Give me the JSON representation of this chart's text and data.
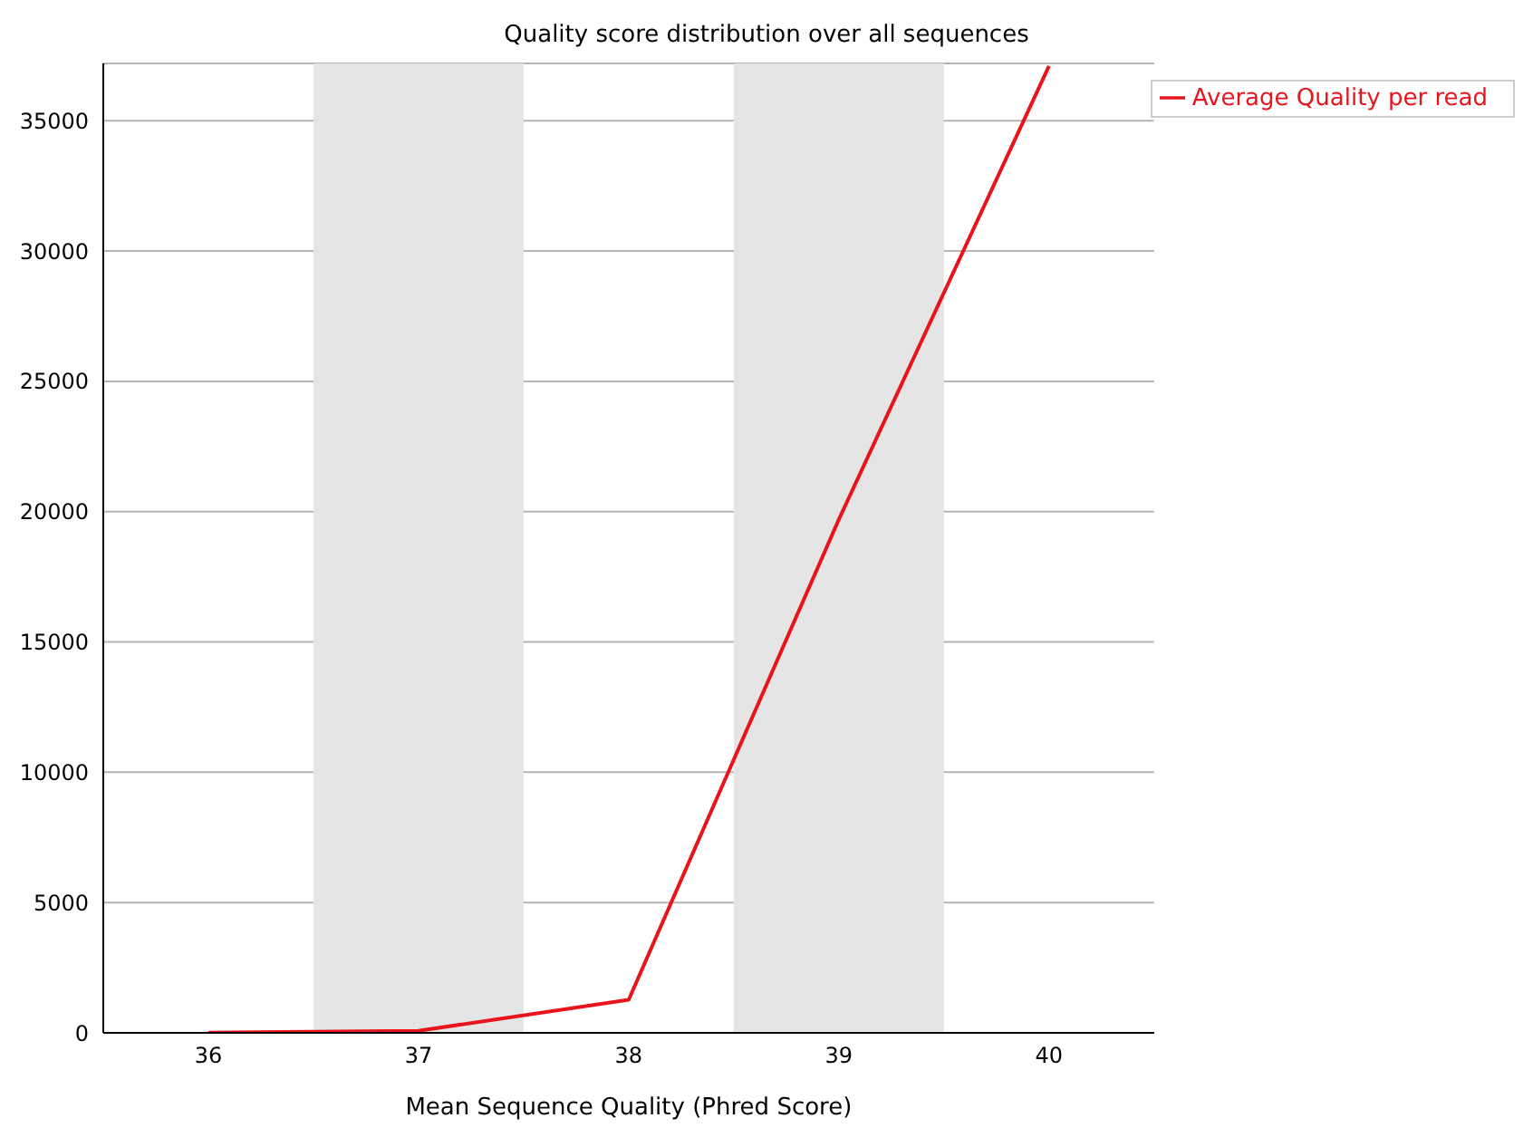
{
  "chart_data": {
    "type": "line",
    "title": "Quality score distribution over all sequences",
    "xlabel": "Mean Sequence Quality (Phred Score)",
    "x": [
      36,
      37,
      38,
      39,
      40
    ],
    "series": [
      {
        "name": "Average Quality per read",
        "color": "#e8141c",
        "values": [
          10,
          80,
          1270,
          19700,
          37100
        ]
      }
    ],
    "xlim": [
      35.5,
      40.5
    ],
    "xticks": [
      36,
      37,
      38,
      39,
      40
    ],
    "ylim": [
      0,
      37200
    ],
    "yticks": [
      0,
      5000,
      10000,
      15000,
      20000,
      25000,
      30000,
      35000
    ],
    "bands": [
      {
        "axis": "x",
        "from": 36.5,
        "to": 37.5,
        "color": "#e5e5e5"
      },
      {
        "axis": "x",
        "from": 38.5,
        "to": 39.5,
        "color": "#e5e5e5"
      }
    ],
    "grid": "y",
    "legend": "top right",
    "marker": "none",
    "line_style": "solid"
  }
}
